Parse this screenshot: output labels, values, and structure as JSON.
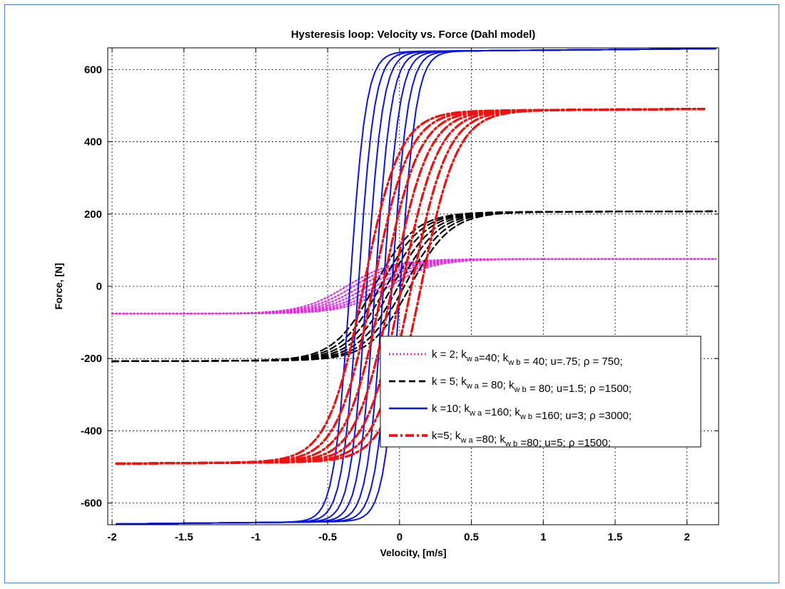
{
  "chart_data": {
    "type": "line",
    "title": "Hysteresis loop: Velocity vs. Force (Dahl model)",
    "xlabel": "Velocity, [m/s]",
    "ylabel": "Force, [N]",
    "xlim": [
      -2.03,
      2.22
    ],
    "ylim": [
      -660,
      660
    ],
    "x_ticks": [
      -2,
      -1.5,
      -1,
      -0.5,
      0,
      0.5,
      1,
      1.5,
      2
    ],
    "x_tick_labels": [
      "-2",
      "-1.5",
      "-1",
      "-0.5",
      "0",
      "0.5",
      "1",
      "1.5",
      "2"
    ],
    "y_ticks": [
      -600,
      -400,
      -200,
      0,
      200,
      400,
      600
    ],
    "y_tick_labels": [
      "-600",
      "-400",
      "-200",
      "0",
      "200",
      "400",
      "600"
    ],
    "grid": true,
    "legend_position": "lower-right",
    "series": [
      {
        "legend_parts": [
          {
            "t": "k = 2; k"
          },
          {
            "t": "w a",
            "sub": true
          },
          {
            "t": "=40; k"
          },
          {
            "t": "w b",
            "sub": true
          },
          {
            "t": " = 40; u=.75;  ρ = 750;"
          }
        ],
        "color": "#e12ee1",
        "dash": "dotted",
        "saturation": 75,
        "center": -0.22,
        "half_width": 0.5,
        "spread": 0.3,
        "x_min": -2.0,
        "x_max": 2.2
      },
      {
        "legend_parts": [
          {
            "t": "k = 5; k"
          },
          {
            "t": "w a",
            "sub": true
          },
          {
            "t": " = 80; k"
          },
          {
            "t": "w b",
            "sub": true
          },
          {
            "t": " = 80; u=1.5; ρ =1500;"
          }
        ],
        "color": "#000000",
        "dash": "dashed",
        "saturation": 205,
        "center": -0.05,
        "half_width": 0.45,
        "spread": 0.25,
        "x_min": -2.0,
        "x_max": 2.2
      },
      {
        "legend_parts": [
          {
            "t": "k =10; k"
          },
          {
            "t": "w a",
            "sub": true
          },
          {
            "t": " =160; k"
          },
          {
            "t": "w b",
            "sub": true
          },
          {
            "t": " =160; u=3; ρ =3000;"
          }
        ],
        "color": "#0a14e6",
        "dash": "solid",
        "saturation": 650,
        "center": -0.17,
        "half_width": 0.18,
        "spread": 0.35,
        "x_min": -1.97,
        "x_max": 2.2
      },
      {
        "legend_parts": [
          {
            "t": "k=5; k"
          },
          {
            "t": "w a",
            "sub": true
          },
          {
            "t": " =80; k"
          },
          {
            "t": "w b",
            "sub": true
          },
          {
            "t": " =80; u=5; ρ =1500;"
          }
        ],
        "color": "#f01010",
        "dash": "dashdot",
        "saturation": 485,
        "center": -0.05,
        "half_width": 0.4,
        "spread": 0.4,
        "x_min": -1.97,
        "x_max": 2.12
      }
    ]
  }
}
